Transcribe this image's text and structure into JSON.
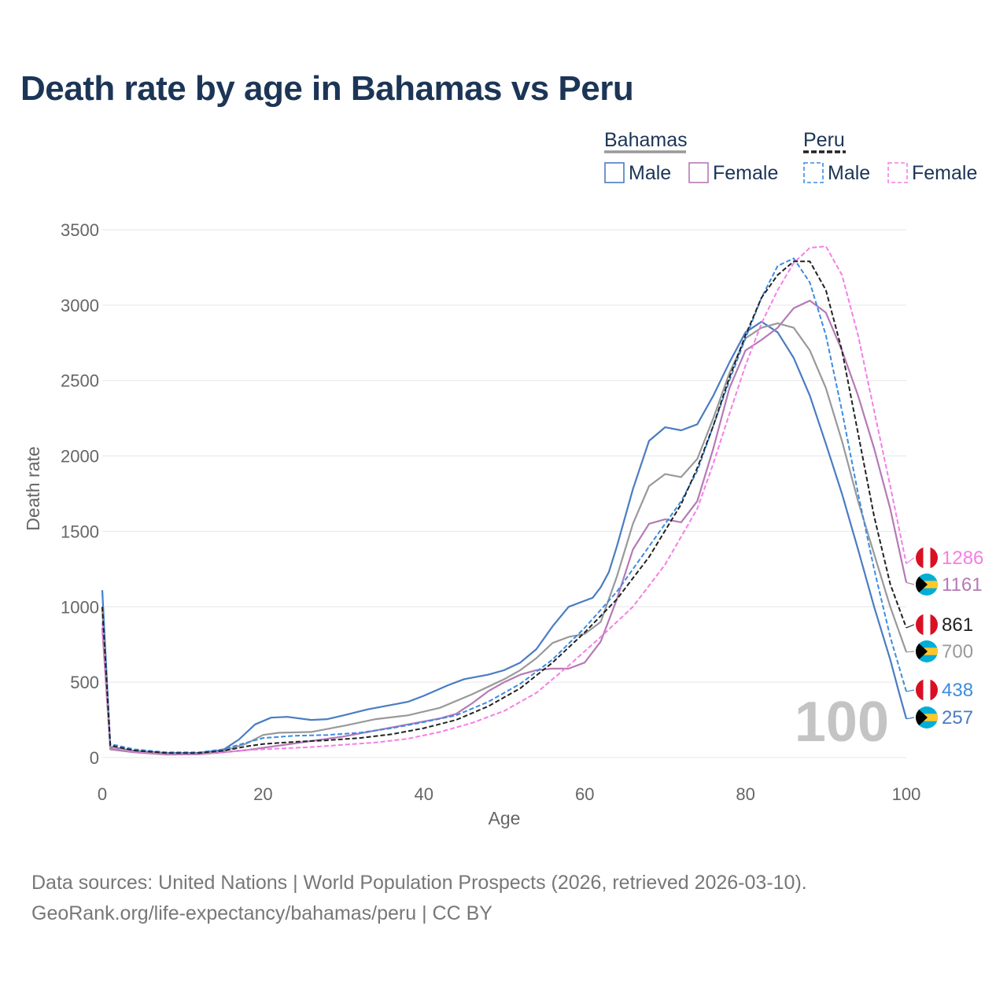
{
  "title": "Death rate by age in Bahamas vs Peru",
  "footer": {
    "source": "Data sources: United Nations | World Population Prospects (2026, retrieved 2026-03-10).",
    "url": "GeoRank.org/life-expectancy/bahamas/peru | CC BY"
  },
  "legend": {
    "groups": [
      {
        "label": "Bahamas",
        "items": [
          "Male",
          "Female"
        ],
        "line_color": "#999999"
      },
      {
        "label": "Peru",
        "items": [
          "Male",
          "Female"
        ],
        "line_color": "#222222"
      }
    ]
  },
  "chart_data": {
    "type": "line",
    "title": "Death rate by age in Bahamas vs Peru",
    "xlabel": "Age",
    "ylabel": "Death rate",
    "xlim": [
      0,
      100
    ],
    "ylim": [
      0,
      3500
    ],
    "xticks": [
      0,
      20,
      40,
      60,
      80,
      100
    ],
    "yticks": [
      0,
      500,
      1000,
      1500,
      2000,
      2500,
      3000,
      3500
    ],
    "grid": true,
    "annotation": "100",
    "series": [
      {
        "name": "Bahamas Male",
        "country": "Bahamas",
        "sex": "Male",
        "color": "#4a7cc2",
        "dashed": false,
        "end_label": "257",
        "points": [
          [
            0,
            1110
          ],
          [
            1,
            70
          ],
          [
            4,
            45
          ],
          [
            8,
            30
          ],
          [
            12,
            30
          ],
          [
            15,
            50
          ],
          [
            17,
            120
          ],
          [
            19,
            220
          ],
          [
            21,
            265
          ],
          [
            23,
            270
          ],
          [
            26,
            250
          ],
          [
            28,
            255
          ],
          [
            30,
            280
          ],
          [
            33,
            320
          ],
          [
            36,
            350
          ],
          [
            38,
            370
          ],
          [
            40,
            410
          ],
          [
            43,
            480
          ],
          [
            45,
            520
          ],
          [
            48,
            550
          ],
          [
            50,
            580
          ],
          [
            52,
            630
          ],
          [
            54,
            720
          ],
          [
            56,
            870
          ],
          [
            58,
            1000
          ],
          [
            60,
            1040
          ],
          [
            61,
            1060
          ],
          [
            62,
            1130
          ],
          [
            63,
            1230
          ],
          [
            64,
            1400
          ],
          [
            66,
            1780
          ],
          [
            68,
            2100
          ],
          [
            70,
            2190
          ],
          [
            72,
            2170
          ],
          [
            74,
            2210
          ],
          [
            76,
            2400
          ],
          [
            78,
            2620
          ],
          [
            80,
            2820
          ],
          [
            82,
            2890
          ],
          [
            84,
            2820
          ],
          [
            86,
            2650
          ],
          [
            88,
            2400
          ],
          [
            90,
            2080
          ],
          [
            92,
            1750
          ],
          [
            94,
            1380
          ],
          [
            96,
            1000
          ],
          [
            98,
            650
          ],
          [
            99,
            450
          ],
          [
            100,
            257
          ]
        ]
      },
      {
        "name": "Bahamas Female",
        "country": "Bahamas",
        "sex": "Female",
        "color": "#b57ab5",
        "dashed": false,
        "end_label": "1161",
        "points": [
          [
            0,
            860
          ],
          [
            1,
            55
          ],
          [
            4,
            35
          ],
          [
            8,
            20
          ],
          [
            12,
            22
          ],
          [
            15,
            35
          ],
          [
            18,
            50
          ],
          [
            22,
            80
          ],
          [
            26,
            110
          ],
          [
            30,
            140
          ],
          [
            34,
            180
          ],
          [
            38,
            220
          ],
          [
            42,
            260
          ],
          [
            44,
            290
          ],
          [
            46,
            360
          ],
          [
            48,
            440
          ],
          [
            50,
            500
          ],
          [
            52,
            550
          ],
          [
            54,
            580
          ],
          [
            56,
            590
          ],
          [
            58,
            590
          ],
          [
            60,
            630
          ],
          [
            62,
            770
          ],
          [
            64,
            1050
          ],
          [
            66,
            1380
          ],
          [
            68,
            1550
          ],
          [
            70,
            1580
          ],
          [
            72,
            1560
          ],
          [
            74,
            1700
          ],
          [
            76,
            2050
          ],
          [
            78,
            2450
          ],
          [
            80,
            2700
          ],
          [
            82,
            2770
          ],
          [
            84,
            2850
          ],
          [
            86,
            2980
          ],
          [
            88,
            3030
          ],
          [
            90,
            2950
          ],
          [
            92,
            2700
          ],
          [
            94,
            2400
          ],
          [
            96,
            2050
          ],
          [
            98,
            1650
          ],
          [
            100,
            1161
          ]
        ]
      },
      {
        "name": "Bahamas Combined",
        "country": "Bahamas",
        "sex": "Both",
        "color": "#999999",
        "dashed": false,
        "end_label": "700",
        "points": [
          [
            0,
            990
          ],
          [
            1,
            62
          ],
          [
            4,
            40
          ],
          [
            8,
            25
          ],
          [
            12,
            26
          ],
          [
            15,
            42
          ],
          [
            18,
            95
          ],
          [
            20,
            150
          ],
          [
            22,
            165
          ],
          [
            26,
            170
          ],
          [
            30,
            210
          ],
          [
            34,
            255
          ],
          [
            38,
            280
          ],
          [
            42,
            330
          ],
          [
            46,
            420
          ],
          [
            50,
            520
          ],
          [
            52,
            580
          ],
          [
            54,
            660
          ],
          [
            56,
            760
          ],
          [
            58,
            800
          ],
          [
            60,
            820
          ],
          [
            62,
            900
          ],
          [
            64,
            1200
          ],
          [
            66,
            1550
          ],
          [
            68,
            1800
          ],
          [
            70,
            1880
          ],
          [
            72,
            1860
          ],
          [
            74,
            1980
          ],
          [
            76,
            2250
          ],
          [
            78,
            2550
          ],
          [
            80,
            2780
          ],
          [
            82,
            2850
          ],
          [
            84,
            2880
          ],
          [
            86,
            2850
          ],
          [
            88,
            2700
          ],
          [
            90,
            2450
          ],
          [
            92,
            2100
          ],
          [
            94,
            1700
          ],
          [
            96,
            1350
          ],
          [
            98,
            1000
          ],
          [
            100,
            700
          ]
        ]
      },
      {
        "name": "Peru Male",
        "country": "Peru",
        "sex": "Male",
        "color": "#3d8be0",
        "dashed": true,
        "end_label": "438",
        "points": [
          [
            0,
            1100
          ],
          [
            1,
            90
          ],
          [
            4,
            55
          ],
          [
            8,
            35
          ],
          [
            12,
            35
          ],
          [
            15,
            55
          ],
          [
            18,
            100
          ],
          [
            20,
            130
          ],
          [
            24,
            145
          ],
          [
            28,
            150
          ],
          [
            32,
            165
          ],
          [
            36,
            195
          ],
          [
            40,
            235
          ],
          [
            44,
            280
          ],
          [
            48,
            370
          ],
          [
            52,
            490
          ],
          [
            56,
            650
          ],
          [
            60,
            860
          ],
          [
            64,
            1100
          ],
          [
            68,
            1400
          ],
          [
            72,
            1700
          ],
          [
            74,
            1900
          ],
          [
            76,
            2200
          ],
          [
            78,
            2500
          ],
          [
            80,
            2780
          ],
          [
            82,
            3050
          ],
          [
            84,
            3260
          ],
          [
            86,
            3310
          ],
          [
            88,
            3150
          ],
          [
            90,
            2800
          ],
          [
            92,
            2300
          ],
          [
            94,
            1750
          ],
          [
            96,
            1250
          ],
          [
            98,
            800
          ],
          [
            100,
            438
          ]
        ]
      },
      {
        "name": "Peru Female",
        "country": "Peru",
        "sex": "Female",
        "color": "#f57ee6",
        "dashed": true,
        "end_label": "1286",
        "points": [
          [
            0,
            900
          ],
          [
            1,
            70
          ],
          [
            4,
            40
          ],
          [
            8,
            25
          ],
          [
            12,
            25
          ],
          [
            15,
            35
          ],
          [
            18,
            50
          ],
          [
            22,
            60
          ],
          [
            26,
            70
          ],
          [
            30,
            85
          ],
          [
            34,
            100
          ],
          [
            38,
            125
          ],
          [
            42,
            170
          ],
          [
            46,
            230
          ],
          [
            50,
            310
          ],
          [
            54,
            430
          ],
          [
            58,
            610
          ],
          [
            62,
            800
          ],
          [
            66,
            1000
          ],
          [
            70,
            1280
          ],
          [
            74,
            1650
          ],
          [
            76,
            1950
          ],
          [
            78,
            2280
          ],
          [
            80,
            2600
          ],
          [
            82,
            2880
          ],
          [
            84,
            3100
          ],
          [
            86,
            3280
          ],
          [
            88,
            3380
          ],
          [
            90,
            3390
          ],
          [
            92,
            3200
          ],
          [
            94,
            2800
          ],
          [
            96,
            2300
          ],
          [
            98,
            1800
          ],
          [
            100,
            1286
          ]
        ]
      },
      {
        "name": "Peru Combined",
        "country": "Peru",
        "sex": "Both",
        "color": "#222222",
        "dashed": true,
        "end_label": "861",
        "points": [
          [
            0,
            1000
          ],
          [
            1,
            80
          ],
          [
            4,
            47
          ],
          [
            8,
            30
          ],
          [
            12,
            30
          ],
          [
            15,
            45
          ],
          [
            18,
            75
          ],
          [
            20,
            90
          ],
          [
            24,
            105
          ],
          [
            28,
            115
          ],
          [
            32,
            130
          ],
          [
            36,
            155
          ],
          [
            40,
            195
          ],
          [
            44,
            250
          ],
          [
            48,
            340
          ],
          [
            52,
            460
          ],
          [
            56,
            630
          ],
          [
            60,
            830
          ],
          [
            64,
            1050
          ],
          [
            68,
            1330
          ],
          [
            72,
            1680
          ],
          [
            74,
            1920
          ],
          [
            76,
            2200
          ],
          [
            78,
            2520
          ],
          [
            80,
            2800
          ],
          [
            82,
            3050
          ],
          [
            84,
            3200
          ],
          [
            86,
            3290
          ],
          [
            88,
            3290
          ],
          [
            90,
            3100
          ],
          [
            92,
            2700
          ],
          [
            94,
            2150
          ],
          [
            96,
            1600
          ],
          [
            98,
            1150
          ],
          [
            100,
            861
          ]
        ]
      }
    ]
  }
}
